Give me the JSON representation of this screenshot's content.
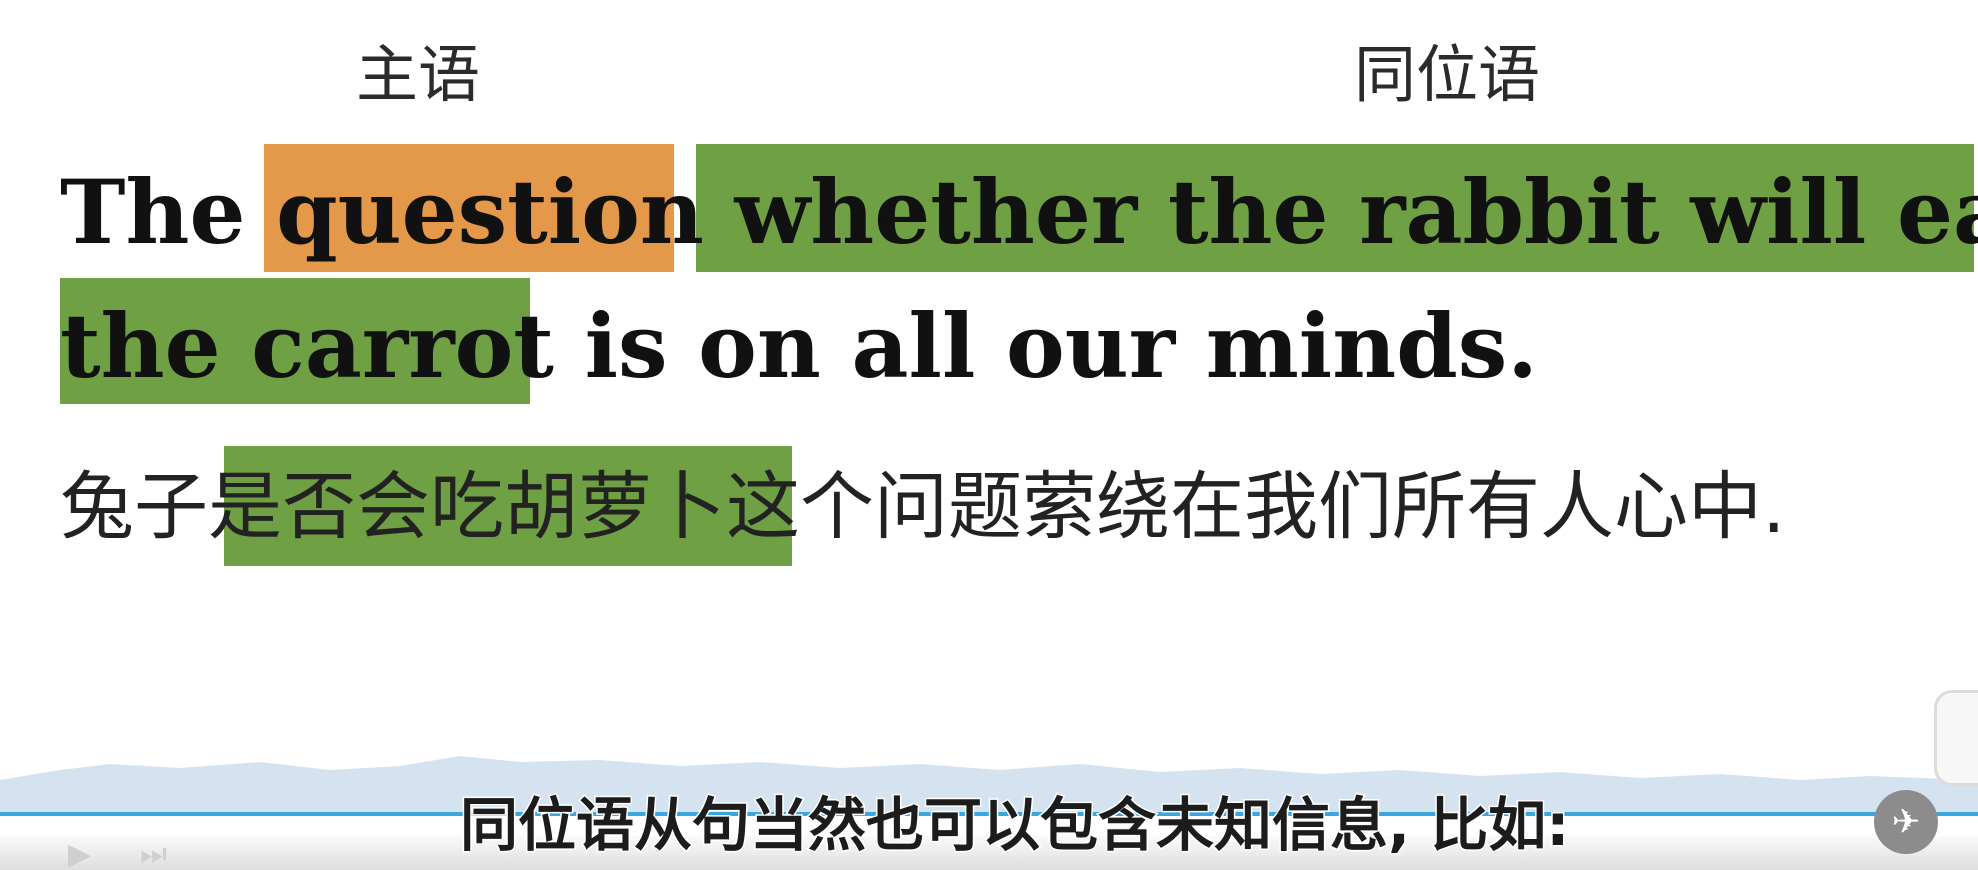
{
  "labels": {
    "subject": "主语",
    "appositive": "同位语"
  },
  "sentence": {
    "line1": {
      "the": "The ",
      "question": "question",
      "clause": " whether the rabbit will eat"
    },
    "line2": {
      "clause_end": "the carrot",
      "rest": " is on all our minds."
    },
    "chinese": {
      "start": "兔子",
      "highlight": "是否会吃胡萝卜",
      "rest": "这个问题萦绕在我们所有人心中."
    }
  },
  "subtitle": "同位语从句当然也可以包含未知信息, 比如:",
  "colors": {
    "subject_highlight": "#e3984a",
    "appositive_highlight": "#6fa144",
    "progress": "#3aa6e0"
  },
  "icons": {
    "play": "play-icon",
    "next": "next-icon",
    "logo": "channel-logo-icon"
  }
}
